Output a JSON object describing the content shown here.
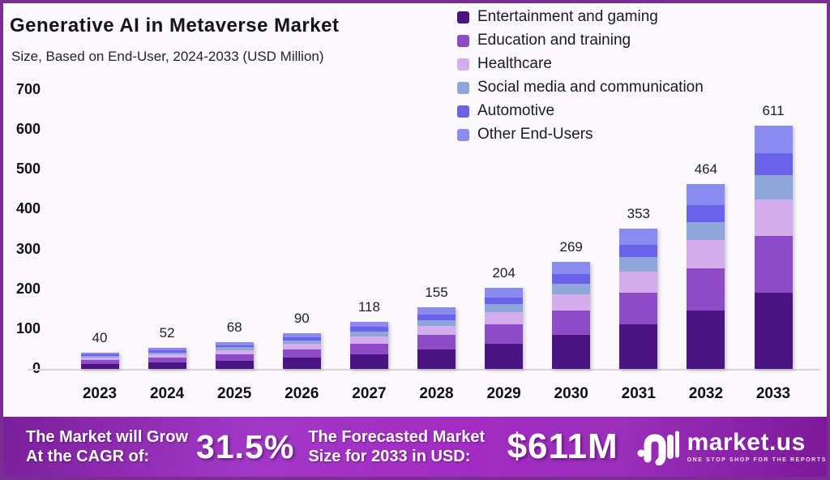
{
  "header": {
    "title": "Generative AI in Metaverse Market",
    "subtitle": "Size, Based on End-User, 2024-2033 (USD Million)"
  },
  "chart_data": {
    "type": "bar",
    "stacked": true,
    "title": "Generative AI in Metaverse Market",
    "subtitle": "Size, Based on End-User, 2024-2033 (USD Million)",
    "unit": "USD Million",
    "categories": [
      "2023",
      "2024",
      "2025",
      "2026",
      "2027",
      "2028",
      "2029",
      "2030",
      "2031",
      "2032",
      "2033"
    ],
    "totals": [
      40,
      52,
      68,
      90,
      118,
      155,
      204,
      269,
      353,
      464,
      611
    ],
    "series": [
      {
        "name": "Entertainment and gaming",
        "color": "#4a1580",
        "values": [
          13,
          16,
          21,
          28,
          37,
          49,
          64,
          85,
          111,
          146,
          192
        ]
      },
      {
        "name": "Education and training",
        "color": "#8d4bc5",
        "values": [
          9,
          12,
          16,
          21,
          27,
          36,
          47,
          62,
          81,
          107,
          141
        ]
      },
      {
        "name": "Healthcare",
        "color": "#d4aeec",
        "values": [
          6,
          8,
          10,
          14,
          18,
          23,
          31,
          40,
          53,
          70,
          92
        ]
      },
      {
        "name": "Social media and communication",
        "color": "#8ea6d8",
        "values": [
          4,
          5,
          7,
          9,
          12,
          15,
          20,
          27,
          35,
          46,
          61
        ]
      },
      {
        "name": "Automotive",
        "color": "#6a63ea",
        "values": [
          4,
          5,
          6,
          8,
          11,
          14,
          18,
          24,
          32,
          42,
          55
        ]
      },
      {
        "name": "Other End-Users",
        "color": "#8b8af0",
        "values": [
          4,
          6,
          8,
          10,
          13,
          18,
          24,
          31,
          41,
          53,
          70
        ]
      }
    ],
    "xlabel": "",
    "ylabel": "",
    "ylim": [
      0,
      700
    ],
    "yticks": [
      0,
      100,
      200,
      300,
      400,
      500,
      600,
      700
    ],
    "grid": false,
    "legend_position": "top-right"
  },
  "footer": {
    "cagr_label_1": "The Market will Grow",
    "cagr_label_2": "At the CAGR of:",
    "cagr_value": "31.5%",
    "forecast_label_1": "The Forecasted Market",
    "forecast_label_2": "Size for 2033 in USD:",
    "forecast_value": "$611M",
    "brand": "market.us",
    "tagline": "ONE STOP SHOP FOR THE REPORTS"
  }
}
